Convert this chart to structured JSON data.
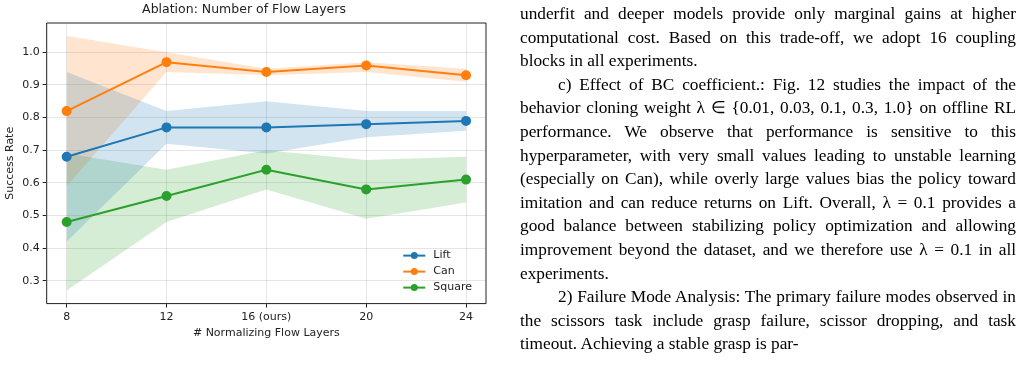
{
  "chart_data": {
    "type": "line",
    "title": "Ablation: Number of Flow Layers",
    "xlabel": "# Normalizing Flow Layers",
    "ylabel": "Success Rate",
    "categories": [
      "8",
      "12",
      "16 (ours)",
      "20",
      "24"
    ],
    "series": [
      {
        "name": "Lift",
        "color": "#1f77b4",
        "values": [
          0.68,
          0.77,
          0.77,
          0.78,
          0.79
        ],
        "lower": [
          0.42,
          0.72,
          0.69,
          0.74,
          0.76
        ],
        "upper": [
          0.94,
          0.82,
          0.85,
          0.82,
          0.82
        ]
      },
      {
        "name": "Can",
        "color": "#ff7f0e",
        "values": [
          0.82,
          0.97,
          0.94,
          0.96,
          0.93
        ],
        "lower": [
          0.59,
          0.94,
          0.93,
          0.94,
          0.91
        ],
        "upper": [
          1.05,
          1.0,
          0.95,
          0.97,
          0.95
        ]
      },
      {
        "name": "Square",
        "color": "#2ca02c",
        "values": [
          0.48,
          0.56,
          0.64,
          0.58,
          0.61
        ],
        "lower": [
          0.27,
          0.48,
          0.58,
          0.49,
          0.54
        ],
        "upper": [
          0.69,
          0.64,
          0.7,
          0.67,
          0.68
        ]
      }
    ],
    "ylim": [
      0.23,
      1.09
    ],
    "yticks": [
      0.3,
      0.4,
      0.5,
      0.6,
      0.7,
      0.8,
      0.9,
      {
        "value": 1,
        "label": "1.0"
      }
    ],
    "grid": true,
    "legend": "bottom right",
    "marker": "circle",
    "line_style": "solid",
    "annotations": [
      "underfit and deeper models provide only marginal gains at higher computational cost. Based on this trade-off, we adopt 16 coupling blocks in all experiments.",
      "c) Effect of BC coefficient.: Fig. 12 studies the impact of the behavior cloning weight λ ∈ {0.01, 0.03, 0.1, 0.3, 1.0} on offline RL performance. We observe that performance is sensitive to this hyperparameter, with very small values leading to unstable learning (especially on Can), while overly large values bias the policy toward imitation and can reduce returns on Lift. Overall, λ = 0.1 provides a good balance between stabilizing policy optimization and allowing improvement beyond the dataset, and we therefore use λ = 0.1 in all experiments.",
      "2) Failure Mode Analysis: The primary failure modes observed in the scissors task include grasp failure, scissor dropping, and task timeout. Achieving a stable grasp is par-"
    ]
  }
}
